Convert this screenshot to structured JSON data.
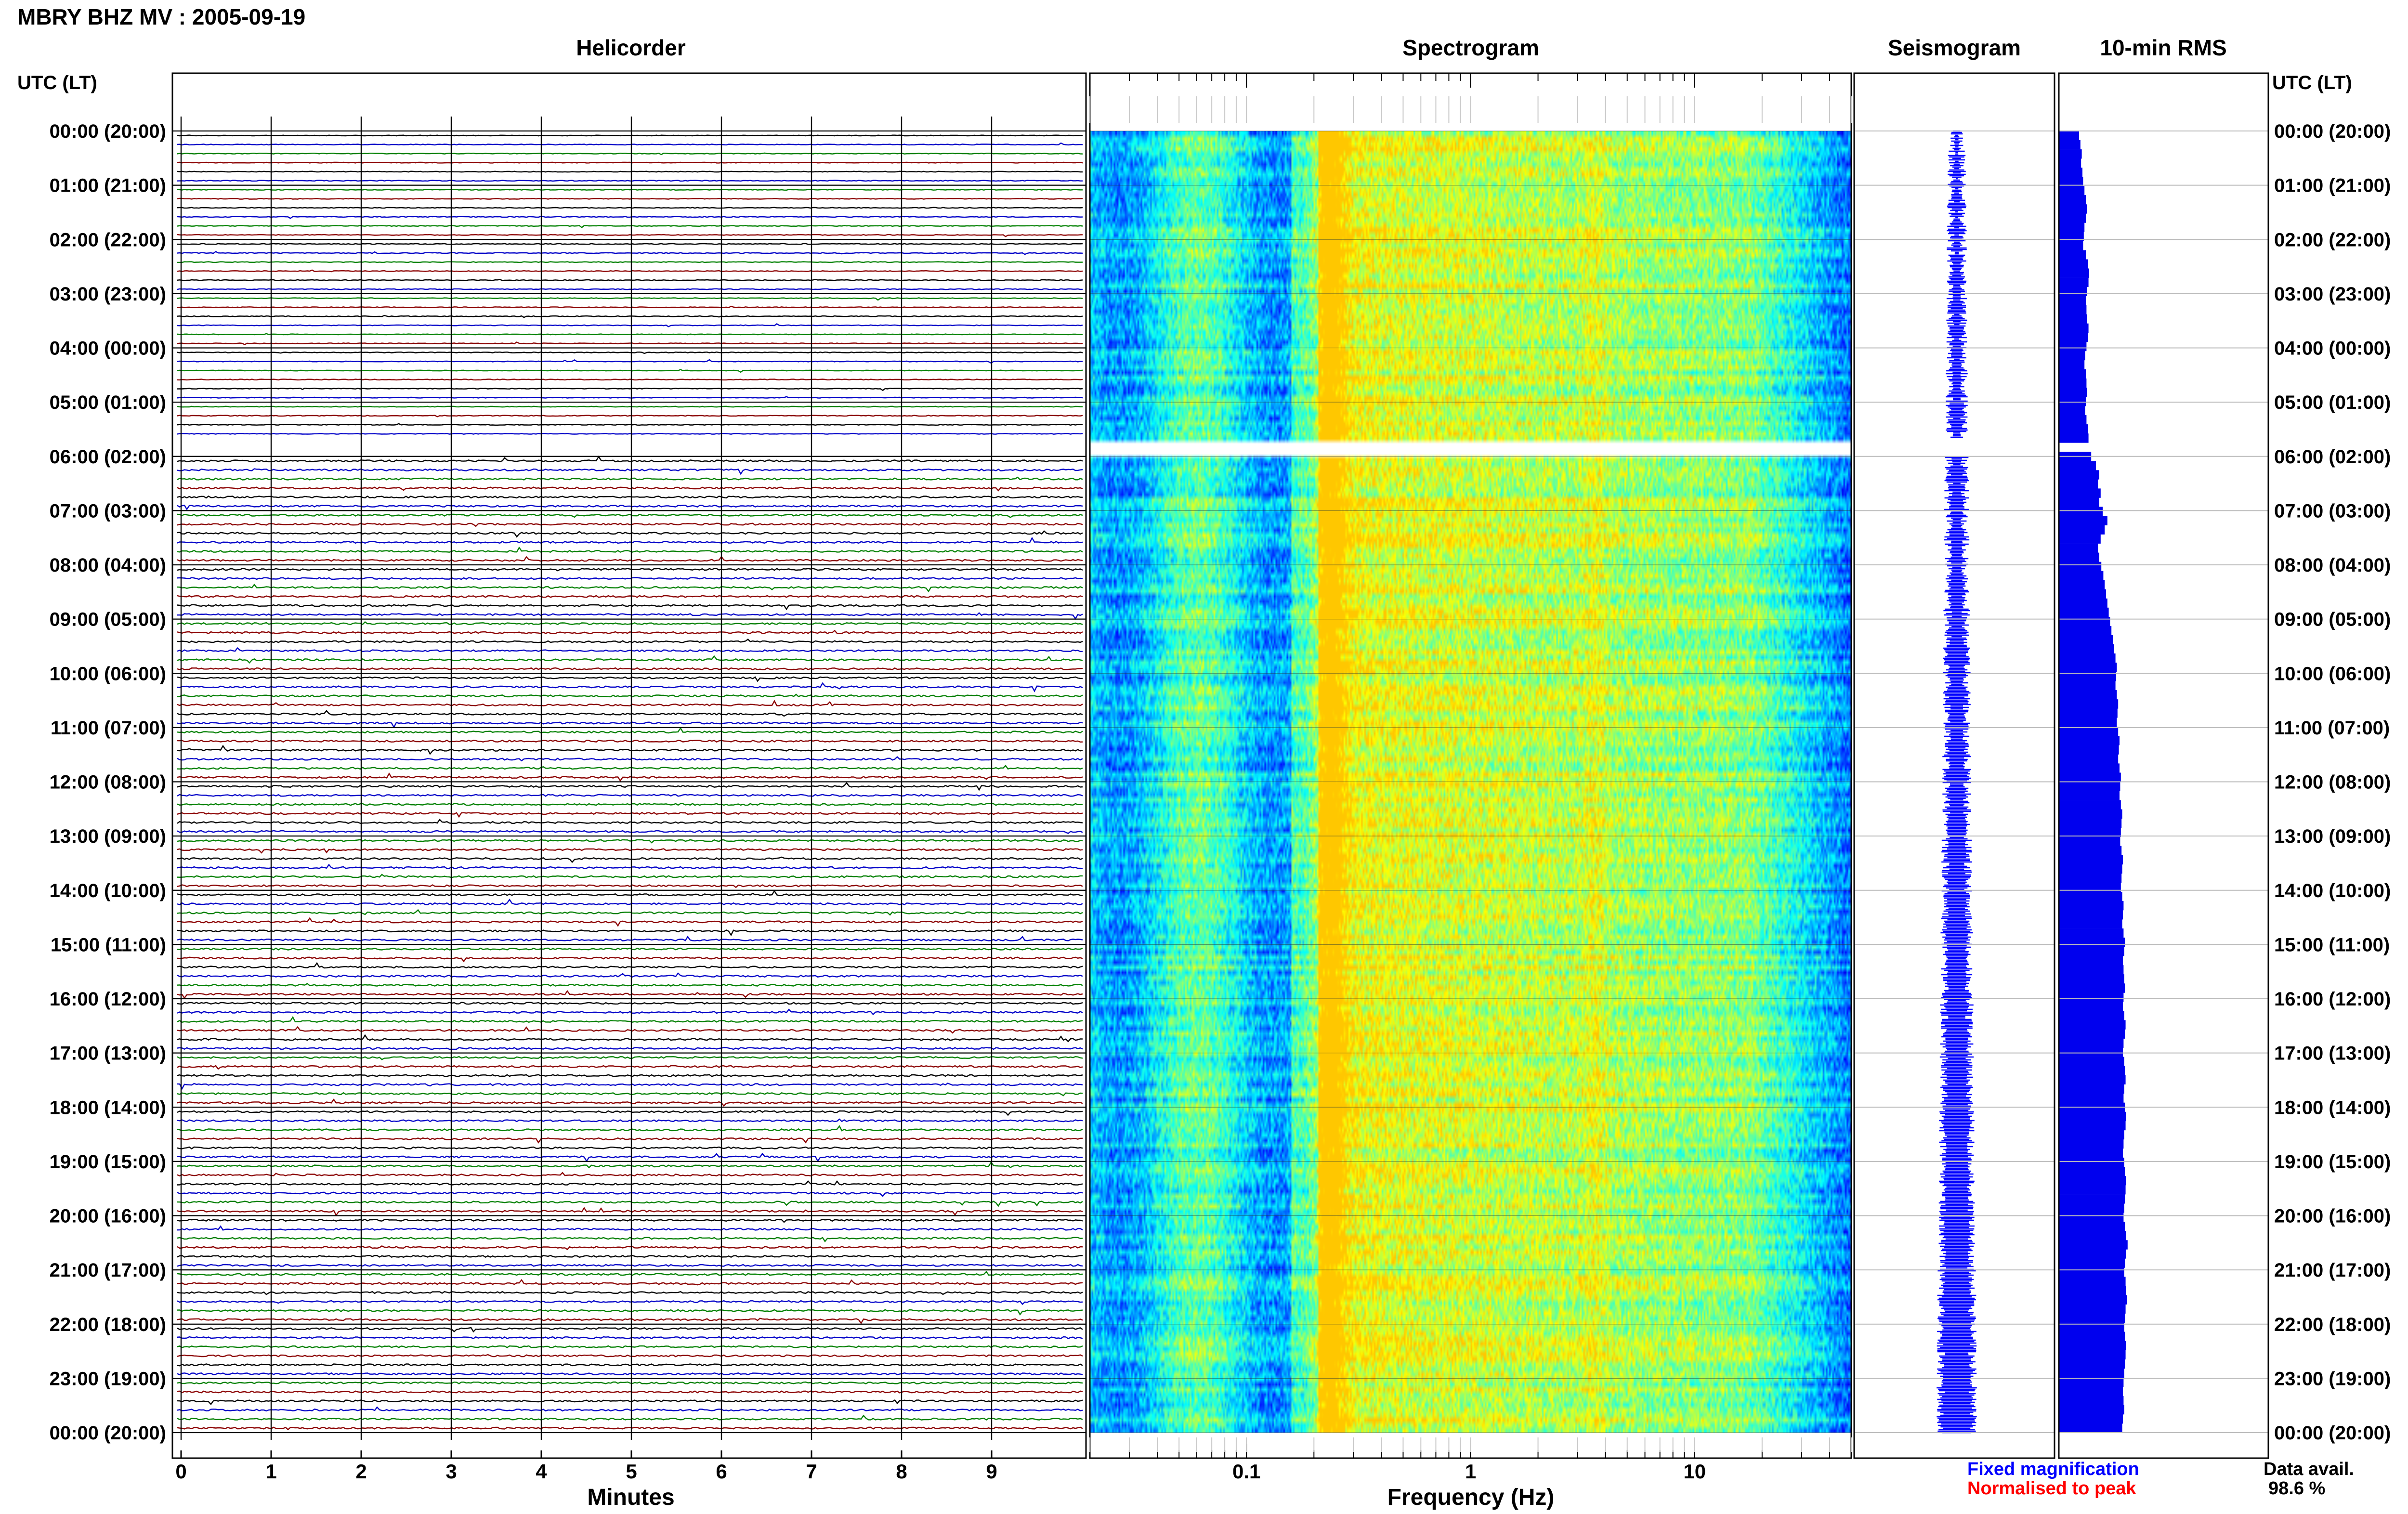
{
  "header": {
    "title": "MBRY BHZ MV : 2005-09-19",
    "utc_label_left": "UTC (LT)",
    "utc_label_right": "UTC (LT)"
  },
  "panels": {
    "helicorder": "Helicorder",
    "spectrogram": "Spectrogram",
    "seismogram": "Seismogram",
    "rms": "10-min RMS"
  },
  "axes": {
    "helicorder_xlabel": "Minutes",
    "spectrogram_xlabel": "Frequency (Hz)",
    "helicorder_ticks": [
      "0",
      "1",
      "2",
      "3",
      "4",
      "5",
      "6",
      "7",
      "8",
      "9"
    ],
    "frequency_ticks": [
      "0.1",
      "1",
      "10"
    ]
  },
  "legend": {
    "fixed": "Fixed magnification",
    "normalised": "Normalised to peak",
    "fixed_color": "#0000ff",
    "normalised_color": "#ff0000"
  },
  "availability": {
    "label": "Data avail.",
    "value": "98.6 %"
  },
  "trace_colors": [
    "#000000",
    "#0000c8",
    "#008000",
    "#8b0000"
  ],
  "time_labels": [
    "00:00 (20:00)",
    "01:00 (21:00)",
    "02:00 (22:00)",
    "03:00 (23:00)",
    "04:00 (00:00)",
    "05:00 (01:00)",
    "06:00 (02:00)",
    "07:00 (03:00)",
    "08:00 (04:00)",
    "09:00 (05:00)",
    "10:00 (06:00)",
    "11:00 (07:00)",
    "12:00 (08:00)",
    "13:00 (09:00)",
    "14:00 (10:00)",
    "15:00 (11:00)",
    "16:00 (12:00)",
    "17:00 (13:00)",
    "18:00 (14:00)",
    "19:00 (15:00)",
    "20:00 (16:00)",
    "21:00 (17:00)",
    "22:00 (18:00)",
    "23:00 (19:00)",
    "00:00 (20:00)"
  ],
  "chart_data": {
    "type": "heatmap",
    "title": "MBRY BHZ MV : 2005-09-19",
    "panels": [
      "Helicorder",
      "Spectrogram",
      "Seismogram",
      "10-min RMS"
    ],
    "y": "time (UTC), 00:00 to 00:00, hourly ticks",
    "helicorder_xlim": [
      0,
      10
    ],
    "frequency_xlim_hz": [
      0.02,
      50
    ],
    "frequency_scale": "log",
    "data_gap_utc": [
      "05:40",
      "06:00"
    ],
    "data_availability_percent": 98.6,
    "rms_relative_10min": [
      0.3,
      0.32,
      0.34,
      0.33,
      0.35,
      0.36,
      0.38,
      0.4,
      0.42,
      0.4,
      0.38,
      0.37,
      0.36,
      0.4,
      0.43,
      0.45,
      0.44,
      0.42,
      0.4,
      0.41,
      0.42,
      0.44,
      0.43,
      0.41,
      0.39,
      0.38,
      0.4,
      0.41,
      0.42,
      0.4,
      0.39,
      0.41,
      0.43,
      0.44,
      0.46,
      0.48,
      0.55,
      0.6,
      0.58,
      0.62,
      0.6,
      0.65,
      0.72,
      0.68,
      0.62,
      0.58,
      0.6,
      0.63,
      0.66,
      0.68,
      0.7,
      0.72,
      0.74,
      0.76,
      0.78,
      0.8,
      0.82,
      0.84,
      0.86,
      0.85,
      0.84,
      0.86,
      0.88,
      0.87,
      0.86,
      0.88,
      0.9,
      0.89,
      0.88,
      0.9,
      0.92,
      0.91,
      0.9,
      0.92,
      0.94,
      0.93,
      0.92,
      0.91,
      0.93,
      0.95,
      0.94,
      0.93,
      0.92,
      0.94,
      0.96,
      0.95,
      0.94,
      0.96,
      0.98,
      0.97,
      0.95,
      0.96,
      0.97,
      0.98,
      0.96,
      0.95,
      0.97,
      0.99,
      0.98,
      0.96,
      0.95,
      0.97,
      0.98,
      0.99,
      0.97,
      0.96,
      0.98,
      1.0,
      0.99,
      0.97,
      0.96,
      0.95,
      0.97,
      0.98,
      1.0,
      0.99,
      0.98,
      0.97,
      0.96,
      0.98,
      1.0,
      1.02,
      1.0,
      0.98,
      0.97,
      0.99,
      1.0,
      1.01,
      0.99,
      0.98,
      0.97,
      0.98,
      1.0,
      0.99,
      0.98,
      0.97,
      0.96,
      0.95,
      0.96,
      0.97,
      0.95,
      0.94
    ]
  }
}
